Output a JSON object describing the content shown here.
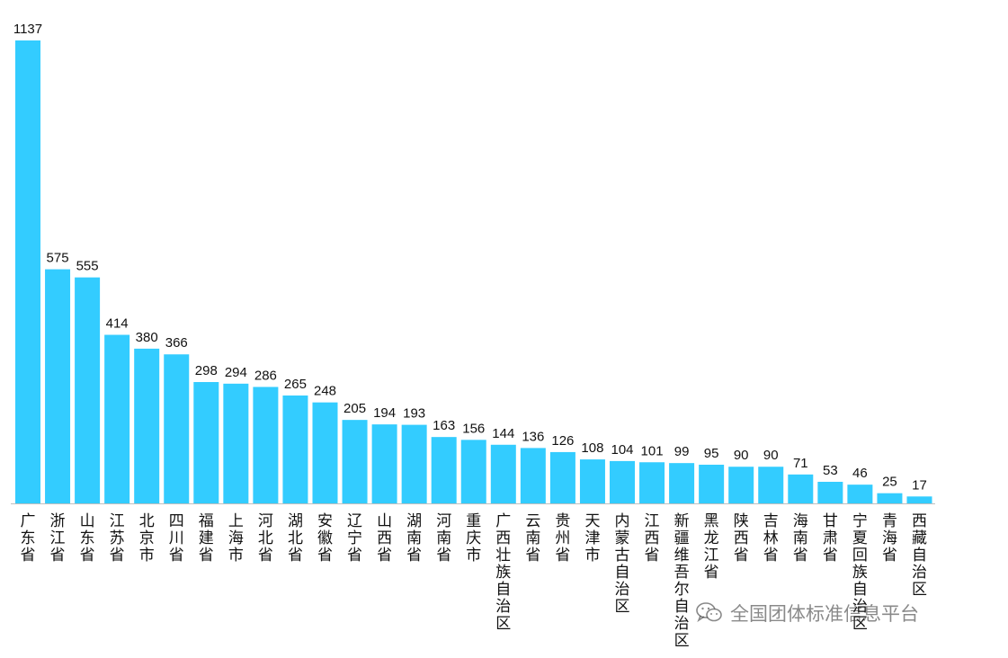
{
  "chart_data": {
    "type": "bar",
    "categories": [
      "广东省",
      "浙江省",
      "山东省",
      "江苏省",
      "北京市",
      "四川省",
      "福建省",
      "上海市",
      "河北省",
      "湖北省",
      "安徽省",
      "辽宁省",
      "山西省",
      "湖南省",
      "河南省",
      "重庆市",
      "广西壮族自治区",
      "云南省",
      "贵州省",
      "天津市",
      "内蒙古自治区",
      "江西省",
      "新疆维吾尔自治区",
      "黑龙江省",
      "陕西省",
      "吉林省",
      "海南省",
      "甘肃省",
      "宁夏回族自治区",
      "青海省",
      "西藏自治区"
    ],
    "values": [
      1137,
      575,
      555,
      414,
      380,
      366,
      298,
      294,
      286,
      265,
      248,
      205,
      194,
      193,
      163,
      156,
      144,
      136,
      126,
      108,
      104,
      101,
      99,
      95,
      90,
      90,
      71,
      53,
      46,
      25,
      17
    ],
    "bar_color": "#33ccff",
    "title": "",
    "xlabel": "",
    "ylabel": "",
    "ylim": [
      0,
      1137
    ],
    "grid": false,
    "legend": "none"
  },
  "watermark": {
    "text": "全国团体标准信息平台",
    "icon": "wechat-icon"
  }
}
